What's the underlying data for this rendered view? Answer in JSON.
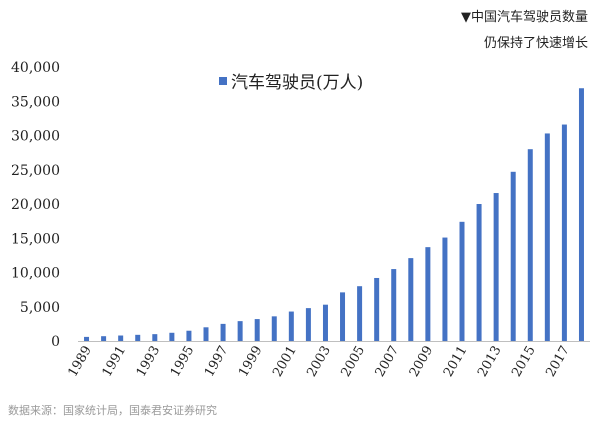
{
  "header": {
    "title_line1": "▼中国汽车驾驶员数量",
    "title_line2": "仍保持了快速增长"
  },
  "footer": {
    "source": "数据来源：国家统计局，国泰君安证券研究"
  },
  "colors": {
    "bar": "#4472c4",
    "axis": "#bfbfbf",
    "grid": "#d9d9d9"
  },
  "chart_data": {
    "type": "bar",
    "title": "▼中国汽车驾驶员数量",
    "subtitle": "仍保持了快速增长",
    "xlabel": "",
    "ylabel": "",
    "ylim": [
      0,
      40000
    ],
    "yticks": [
      0,
      5000,
      10000,
      15000,
      20000,
      25000,
      30000,
      35000,
      40000
    ],
    "ytick_labels": [
      "0",
      "5,000",
      "10,000",
      "15,000",
      "20,000",
      "25,000",
      "30,000",
      "35,000",
      "40,000"
    ],
    "grid": false,
    "legend_position": "top-left",
    "categories": [
      "1989",
      "1990",
      "1991",
      "1992",
      "1993",
      "1994",
      "1995",
      "1996",
      "1997",
      "1998",
      "1999",
      "2000",
      "2001",
      "2002",
      "2003",
      "2004",
      "2005",
      "2006",
      "2007",
      "2008",
      "2009",
      "2010",
      "2011",
      "2012",
      "2013",
      "2014",
      "2015",
      "2016",
      "2017",
      "2018"
    ],
    "xtick_labels": [
      "1989",
      "",
      "1991",
      "",
      "1993",
      "",
      "1995",
      "",
      "1997",
      "",
      "1999",
      "",
      "2001",
      "",
      "2003",
      "",
      "2005",
      "",
      "2007",
      "",
      "2009",
      "",
      "2011",
      "",
      "2013",
      "",
      "2015",
      "",
      "2017",
      ""
    ],
    "series": [
      {
        "name": "汽车驾驶员(万人)",
        "values": [
          600,
          700,
          800,
          900,
          1000,
          1200,
          1500,
          2000,
          2500,
          2900,
          3200,
          3600,
          4300,
          4800,
          5300,
          7100,
          8000,
          9200,
          10500,
          12100,
          13700,
          15100,
          17400,
          20000,
          21600,
          24700,
          28000,
          30300,
          31600,
          36900
        ]
      }
    ]
  }
}
